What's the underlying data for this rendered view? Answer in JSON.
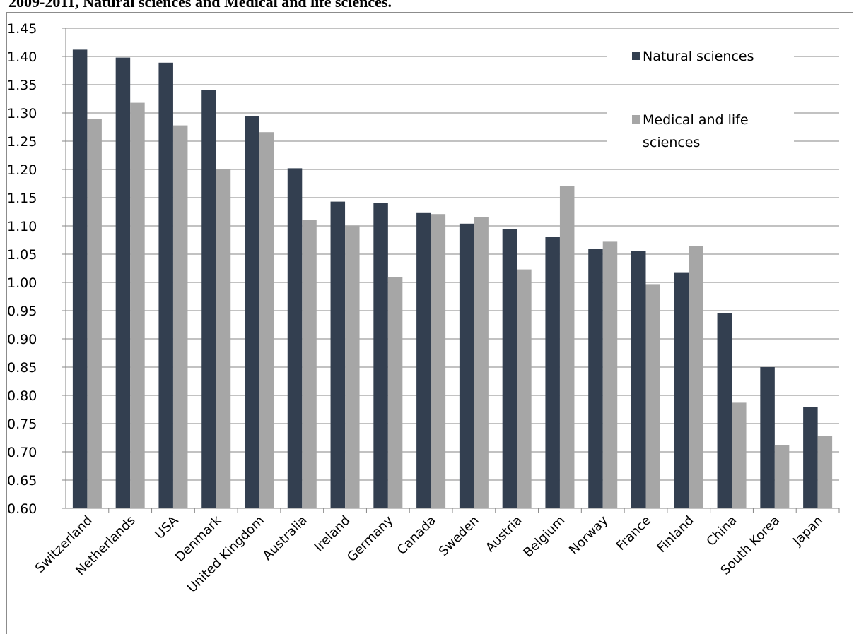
{
  "page": {
    "title": "2009-2011, Natural sciences and Medical and life sciences."
  },
  "colors": {
    "natural": "#333f50",
    "medical": "#a6a6a6",
    "grid": "#868686",
    "axis": "#868686"
  },
  "chart_data": {
    "type": "bar",
    "title": "",
    "xlabel": "",
    "ylabel": "",
    "ylim": [
      0.6,
      1.45
    ],
    "ytick_step": 0.05,
    "ytick_labels": [
      "0.60",
      "0.65",
      "0.70",
      "0.75",
      "0.80",
      "0.85",
      "0.90",
      "0.95",
      "1.00",
      "1.05",
      "1.10",
      "1.15",
      "1.20",
      "1.25",
      "1.30",
      "1.35",
      "1.40",
      "1.45"
    ],
    "grid": true,
    "legend_position": "top-right",
    "categories": [
      "Switzerland",
      "Netherlands",
      "USA",
      "Denmark",
      "United Kingdom",
      "Australia",
      "Ireland",
      "Germany",
      "Canada",
      "Sweden",
      "Austria",
      "Belgium",
      "Norway",
      "France",
      "Finland",
      "China",
      "South Korea",
      "Japan"
    ],
    "series": [
      {
        "name": "Natural sciences",
        "color_key": "natural",
        "values": [
          1.412,
          1.398,
          1.389,
          1.34,
          1.295,
          1.202,
          1.143,
          1.141,
          1.124,
          1.104,
          1.094,
          1.081,
          1.059,
          1.055,
          1.018,
          0.945,
          0.85,
          0.78
        ]
      },
      {
        "name": "Medical and life sciences",
        "color_key": "medical",
        "values": [
          1.289,
          1.318,
          1.278,
          1.2,
          1.266,
          1.111,
          1.101,
          1.01,
          1.121,
          1.115,
          1.023,
          1.171,
          1.072,
          0.997,
          1.065,
          0.787,
          0.712,
          0.728
        ]
      }
    ],
    "legend": [
      {
        "lines": [
          "Natural sciences"
        ],
        "color_key": "natural"
      },
      {
        "lines": [
          "Medical and life",
          "sciences"
        ],
        "color_key": "medical"
      }
    ]
  }
}
